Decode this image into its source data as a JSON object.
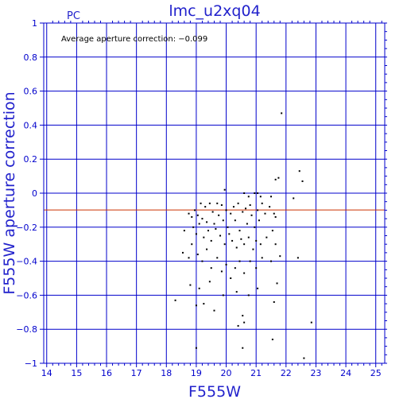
{
  "header": {
    "tag": "PC",
    "title": "lmc_u2xq04"
  },
  "annotation": "Average aperture correction: −0.099",
  "chart_data": {
    "type": "scatter",
    "title": "lmc_u2xq04",
    "xlabel": "F555W",
    "ylabel": "F555W aperture correction",
    "xlim": [
      13.9,
      25.3
    ],
    "ylim": [
      -1,
      1
    ],
    "xticks": [
      14,
      15,
      16,
      17,
      18,
      19,
      20,
      21,
      22,
      23,
      24,
      25
    ],
    "yticks": [
      -1,
      -0.8,
      -0.6,
      -0.4,
      -0.2,
      0,
      0.2,
      0.4,
      0.6,
      0.8,
      1
    ],
    "ytick_labels": [
      "−1",
      "−0.8",
      "−0.6",
      "−0.4",
      "−0.2",
      "0",
      "0.2",
      "0.4",
      "0.6",
      "0.8",
      "1"
    ],
    "grid": true,
    "reference_line": {
      "y": -0.099,
      "color": "#cc3300"
    },
    "colors": {
      "axes": "#0000cc",
      "points": "#000000"
    },
    "points": [
      [
        21.85,
        0.47
      ],
      [
        22.45,
        0.13
      ],
      [
        22.55,
        0.07
      ],
      [
        21.75,
        0.09
      ],
      [
        21.65,
        0.08
      ],
      [
        22.25,
        -0.03
      ],
      [
        21.5,
        -0.02
      ],
      [
        20.95,
        0.0
      ],
      [
        21.05,
        0.0
      ],
      [
        20.6,
        0.0
      ],
      [
        19.95,
        0.02
      ],
      [
        21.15,
        -0.02
      ],
      [
        20.75,
        -0.02
      ],
      [
        18.75,
        -0.12
      ],
      [
        18.85,
        -0.14
      ],
      [
        18.95,
        -0.1
      ],
      [
        19.05,
        -0.13
      ],
      [
        19.15,
        -0.06
      ],
      [
        19.2,
        -0.15
      ],
      [
        19.3,
        -0.08
      ],
      [
        19.35,
        -0.17
      ],
      [
        19.45,
        -0.06
      ],
      [
        19.55,
        -0.11
      ],
      [
        19.6,
        -0.18
      ],
      [
        19.7,
        -0.06
      ],
      [
        19.75,
        -0.13
      ],
      [
        19.85,
        -0.07
      ],
      [
        19.9,
        -0.16
      ],
      [
        20.0,
        -0.1
      ],
      [
        20.05,
        -0.2
      ],
      [
        20.15,
        -0.12
      ],
      [
        20.25,
        -0.08
      ],
      [
        20.3,
        -0.16
      ],
      [
        20.4,
        -0.06
      ],
      [
        20.45,
        -0.22
      ],
      [
        20.55,
        -0.11
      ],
      [
        20.65,
        -0.09
      ],
      [
        20.7,
        -0.18
      ],
      [
        20.8,
        -0.07
      ],
      [
        20.85,
        -0.13
      ],
      [
        20.95,
        -0.2
      ],
      [
        21.05,
        -0.1
      ],
      [
        21.1,
        -0.16
      ],
      [
        21.2,
        -0.06
      ],
      [
        21.3,
        -0.12
      ],
      [
        21.45,
        -0.08
      ],
      [
        21.6,
        -0.12
      ],
      [
        21.65,
        -0.14
      ],
      [
        18.9,
        -0.2
      ],
      [
        19.0,
        -0.24
      ],
      [
        19.1,
        -0.18
      ],
      [
        19.25,
        -0.26
      ],
      [
        19.4,
        -0.22
      ],
      [
        19.5,
        -0.28
      ],
      [
        19.65,
        -0.21
      ],
      [
        19.8,
        -0.25
      ],
      [
        19.95,
        -0.3
      ],
      [
        20.1,
        -0.24
      ],
      [
        20.2,
        -0.28
      ],
      [
        20.35,
        -0.32
      ],
      [
        20.5,
        -0.27
      ],
      [
        20.6,
        -0.3
      ],
      [
        20.75,
        -0.26
      ],
      [
        20.9,
        -0.33
      ],
      [
        21.0,
        -0.28
      ],
      [
        21.15,
        -0.3
      ],
      [
        21.35,
        -0.26
      ],
      [
        21.55,
        -0.22
      ],
      [
        21.65,
        -0.3
      ],
      [
        18.6,
        -0.22
      ],
      [
        18.55,
        -0.35
      ],
      [
        18.75,
        -0.38
      ],
      [
        18.85,
        -0.3
      ],
      [
        19.05,
        -0.36
      ],
      [
        19.2,
        -0.4
      ],
      [
        19.35,
        -0.33
      ],
      [
        19.5,
        -0.44
      ],
      [
        19.7,
        -0.38
      ],
      [
        19.85,
        -0.46
      ],
      [
        20.0,
        -0.42
      ],
      [
        20.15,
        -0.5
      ],
      [
        20.3,
        -0.44
      ],
      [
        20.45,
        -0.4
      ],
      [
        20.6,
        -0.47
      ],
      [
        20.8,
        -0.4
      ],
      [
        21.0,
        -0.44
      ],
      [
        21.2,
        -0.38
      ],
      [
        21.5,
        -0.4
      ],
      [
        21.8,
        -0.37
      ],
      [
        22.4,
        -0.38
      ],
      [
        21.7,
        -0.53
      ],
      [
        18.8,
        -0.54
      ],
      [
        19.1,
        -0.56
      ],
      [
        19.45,
        -0.52
      ],
      [
        19.9,
        -0.6
      ],
      [
        20.35,
        -0.58
      ],
      [
        20.75,
        -0.6
      ],
      [
        21.05,
        -0.56
      ],
      [
        21.6,
        -0.64
      ],
      [
        18.3,
        -0.63
      ],
      [
        19.0,
        -0.66
      ],
      [
        19.25,
        -0.65
      ],
      [
        19.6,
        -0.69
      ],
      [
        20.55,
        -0.72
      ],
      [
        20.4,
        -0.78
      ],
      [
        20.6,
        -0.76
      ],
      [
        22.85,
        -0.76
      ],
      [
        21.55,
        -0.86
      ],
      [
        19.0,
        -0.91
      ],
      [
        20.55,
        -0.91
      ],
      [
        22.6,
        -0.97
      ]
    ]
  }
}
